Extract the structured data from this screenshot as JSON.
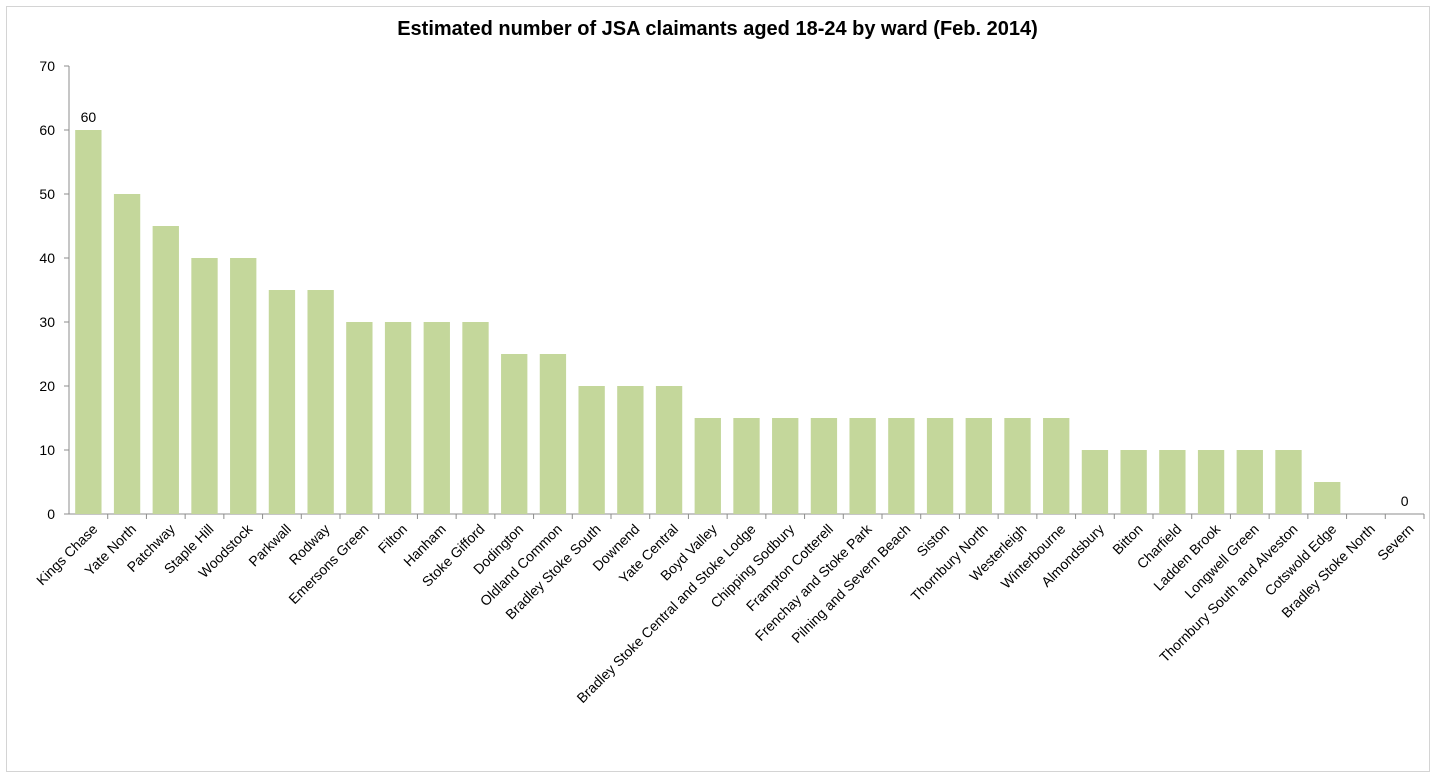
{
  "chart_data": {
    "type": "bar",
    "title": "Estimated number of JSA claimants aged 18-24 by ward (Feb. 2014)",
    "xlabel": "",
    "ylabel": "",
    "ylim": [
      0,
      70
    ],
    "yticks": [
      0,
      10,
      20,
      30,
      40,
      50,
      60,
      70
    ],
    "grid": false,
    "legend": "none",
    "bar_color": "#c4d79b",
    "categories": [
      "Kings Chase",
      "Yate North",
      "Patchway",
      "Staple Hill",
      "Woodstock",
      "Parkwall",
      "Rodway",
      "Emersons Green",
      "Filton",
      "Hanham",
      "Stoke Gifford",
      "Dodington",
      "Oldland Common",
      "Bradley Stoke South",
      "Downend",
      "Yate Central",
      "Boyd Valley",
      "Bradley Stoke Central and Stoke Lodge",
      "Chipping Sodbury",
      "Frampton Cotterell",
      "Frenchay and Stoke Park",
      "Pilning and Severn Beach",
      "Siston",
      "Thornbury North",
      "Westerleigh",
      "Winterbourne",
      "Almondsbury",
      "Bitton",
      "Charfield",
      "Ladden Brook",
      "Longwell Green",
      "Thornbury South and Alveston",
      "Cotswold Edge",
      "Bradley Stoke North",
      "Severn"
    ],
    "values": [
      60,
      50,
      45,
      40,
      40,
      35,
      35,
      30,
      30,
      30,
      30,
      25,
      25,
      20,
      20,
      20,
      15,
      15,
      15,
      15,
      15,
      15,
      15,
      15,
      15,
      15,
      10,
      10,
      10,
      10,
      10,
      10,
      5,
      0,
      0
    ],
    "data_labels": [
      {
        "index": 0,
        "text": "60"
      },
      {
        "index": 34,
        "text": "0"
      }
    ]
  }
}
